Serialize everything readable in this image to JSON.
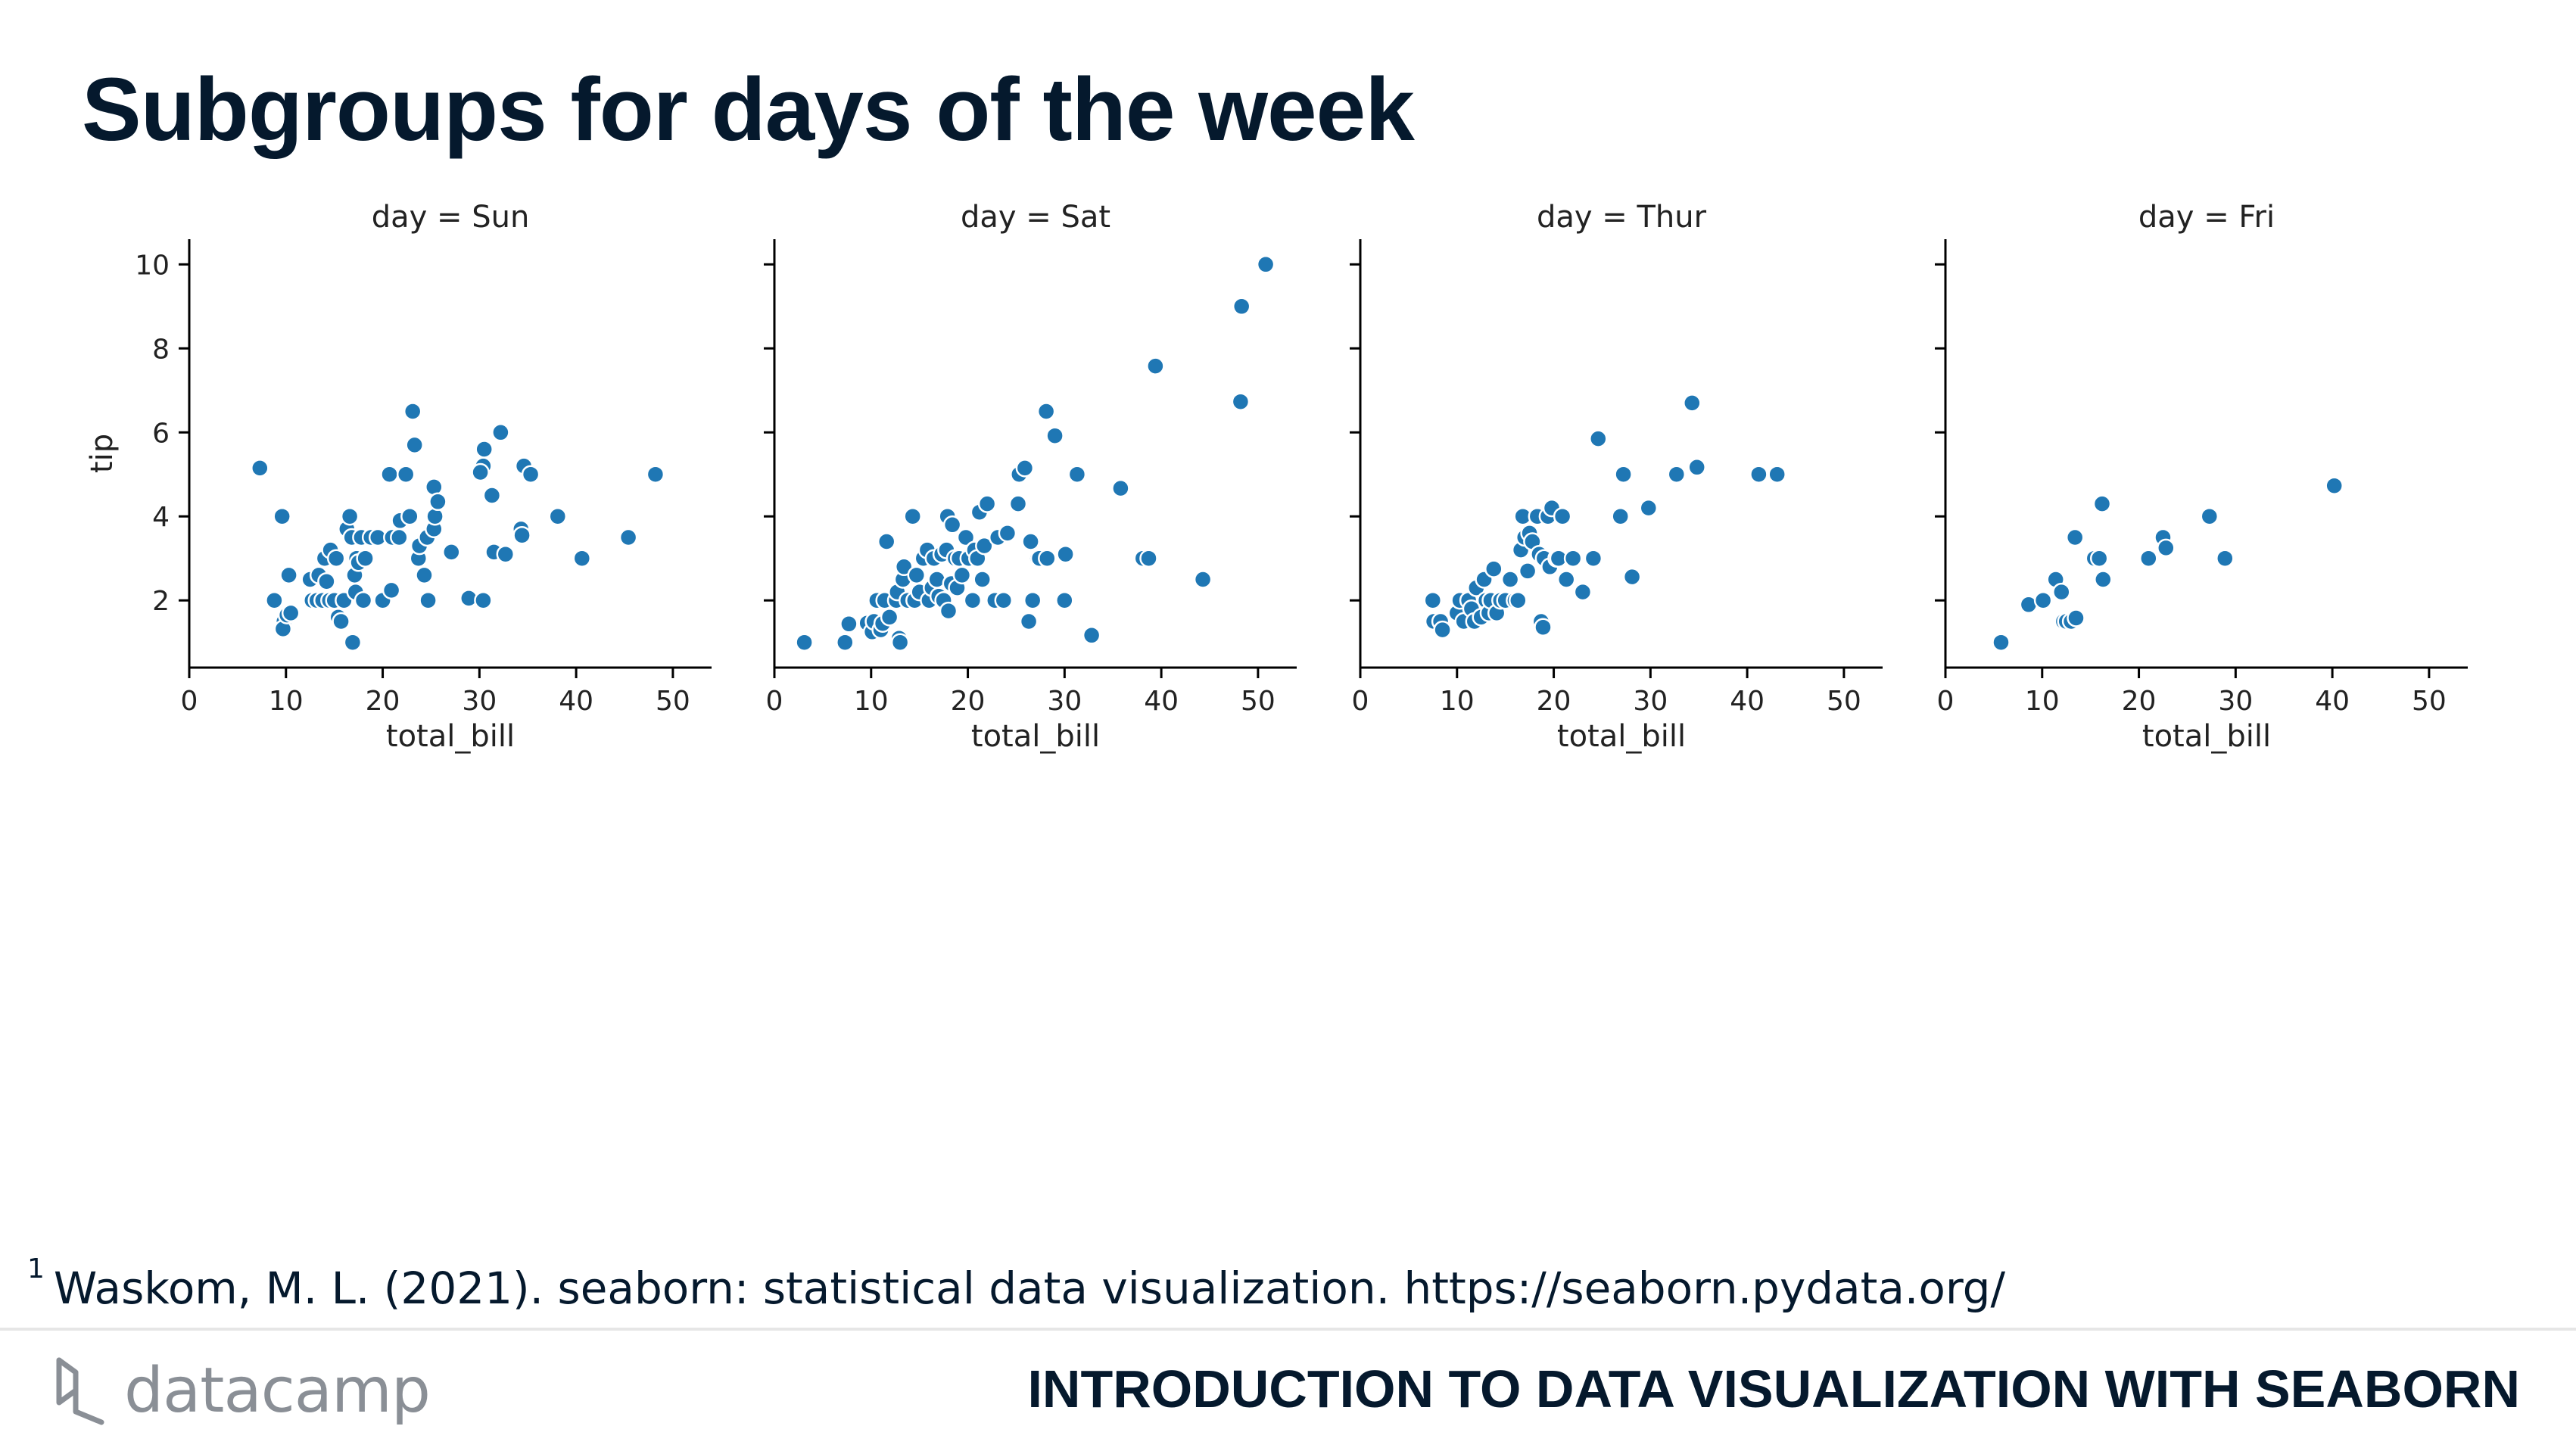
{
  "slide": {
    "title": "Subgroups for days of the week",
    "footnote_marker": "1",
    "footnote_text": "Waskom, M. L. (2021). seaborn: statistical data visualization. https://seaborn.pydata.org/",
    "brand_wordmark": "datacamp",
    "course_name": "INTRODUCTION TO DATA VISUALIZATION WITH SEABORN"
  },
  "colors": {
    "title": "#05192d",
    "point_fill": "#1f77b4",
    "point_edge": "#ffffff",
    "axis": "#000000",
    "brand": "#8a8f96"
  },
  "icons": {
    "brand_logo": "datacamp-logo-icon"
  },
  "chart_data": [
    {
      "type": "scatter",
      "title": "day = Sun",
      "xlabel": "total_bill",
      "ylabel": "tip",
      "xlim": [
        0,
        54
      ],
      "ylim": [
        0.4,
        10.6
      ],
      "xticks": [
        0,
        10,
        20,
        30,
        40,
        50
      ],
      "yticks": [
        2,
        4,
        6,
        8,
        10
      ],
      "grid": false,
      "points": [
        [
          7.3,
          5.15
        ],
        [
          8.8,
          2.0
        ],
        [
          9.6,
          4.0
        ],
        [
          9.8,
          1.5
        ],
        [
          9.7,
          1.32
        ],
        [
          10.1,
          1.65
        ],
        [
          10.3,
          2.6
        ],
        [
          10.5,
          1.7
        ],
        [
          12.5,
          2.5
        ],
        [
          12.7,
          2.0
        ],
        [
          13.2,
          2.0
        ],
        [
          13.4,
          2.6
        ],
        [
          13.8,
          2.0
        ],
        [
          14.0,
          3.0
        ],
        [
          14.2,
          2.45
        ],
        [
          14.5,
          2.0
        ],
        [
          14.6,
          3.2
        ],
        [
          15.0,
          2.0
        ],
        [
          15.2,
          3.0
        ],
        [
          15.4,
          1.6
        ],
        [
          15.7,
          1.5
        ],
        [
          16.0,
          2.0
        ],
        [
          16.3,
          3.7
        ],
        [
          16.6,
          4.0
        ],
        [
          16.8,
          3.5
        ],
        [
          16.9,
          1.0
        ],
        [
          17.1,
          2.6
        ],
        [
          17.2,
          2.2
        ],
        [
          17.3,
          3.0
        ],
        [
          17.5,
          2.9
        ],
        [
          17.8,
          3.5
        ],
        [
          18.0,
          2.0
        ],
        [
          18.2,
          3.0
        ],
        [
          18.8,
          3.5
        ],
        [
          19.5,
          3.5
        ],
        [
          20.0,
          2.0
        ],
        [
          20.7,
          5.0
        ],
        [
          20.9,
          2.24
        ],
        [
          21.0,
          3.5
        ],
        [
          21.7,
          3.5
        ],
        [
          21.8,
          3.9
        ],
        [
          22.4,
          5.0
        ],
        [
          22.8,
          4.0
        ],
        [
          23.1,
          6.5
        ],
        [
          23.3,
          5.7
        ],
        [
          23.7,
          3.0
        ],
        [
          23.8,
          3.3
        ],
        [
          24.3,
          2.6
        ],
        [
          24.6,
          3.5
        ],
        [
          24.7,
          2.0
        ],
        [
          25.3,
          4.7
        ],
        [
          25.3,
          3.7
        ],
        [
          25.4,
          4.0
        ],
        [
          25.7,
          4.35
        ],
        [
          27.1,
          3.15
        ],
        [
          28.9,
          2.05
        ],
        [
          30.4,
          5.2
        ],
        [
          30.1,
          5.05
        ],
        [
          30.5,
          5.6
        ],
        [
          30.4,
          2.0
        ],
        [
          31.3,
          4.5
        ],
        [
          31.5,
          3.15
        ],
        [
          32.2,
          6.0
        ],
        [
          32.7,
          3.1
        ],
        [
          34.3,
          3.7
        ],
        [
          34.6,
          5.2
        ],
        [
          34.4,
          3.55
        ],
        [
          35.3,
          5.0
        ],
        [
          38.1,
          4.0
        ],
        [
          40.6,
          3.0
        ],
        [
          45.4,
          3.5
        ],
        [
          48.2,
          5.0
        ]
      ]
    },
    {
      "type": "scatter",
      "title": "day = Sat",
      "xlabel": "total_bill",
      "ylabel": "",
      "xlim": [
        0,
        54
      ],
      "ylim": [
        0.4,
        10.6
      ],
      "xticks": [
        0,
        10,
        20,
        30,
        40,
        50
      ],
      "yticks": [
        2,
        4,
        6,
        8,
        10
      ],
      "grid": false,
      "points": [
        [
          3.1,
          1.0
        ],
        [
          7.3,
          1.0
        ],
        [
          7.7,
          1.44
        ],
        [
          9.6,
          1.46
        ],
        [
          10.1,
          1.25
        ],
        [
          10.3,
          1.5
        ],
        [
          10.6,
          2.0
        ],
        [
          11.0,
          1.3
        ],
        [
          11.2,
          1.45
        ],
        [
          11.4,
          2.0
        ],
        [
          11.6,
          3.4
        ],
        [
          11.9,
          1.6
        ],
        [
          12.6,
          2.0
        ],
        [
          12.7,
          2.2
        ],
        [
          12.9,
          1.1
        ],
        [
          13.0,
          1.0
        ],
        [
          13.3,
          2.5
        ],
        [
          13.4,
          2.8
        ],
        [
          13.8,
          2.0
        ],
        [
          14.3,
          4.0
        ],
        [
          14.5,
          2.0
        ],
        [
          14.7,
          2.6
        ],
        [
          15.0,
          2.2
        ],
        [
          15.4,
          3.0
        ],
        [
          15.8,
          3.2
        ],
        [
          16.0,
          2.0
        ],
        [
          16.3,
          2.3
        ],
        [
          16.5,
          3.0
        ],
        [
          16.8,
          2.5
        ],
        [
          17.0,
          2.1
        ],
        [
          17.3,
          3.1
        ],
        [
          17.5,
          2.0
        ],
        [
          17.8,
          3.2
        ],
        [
          17.9,
          4.0
        ],
        [
          18.0,
          1.75
        ],
        [
          18.3,
          2.4
        ],
        [
          18.4,
          3.8
        ],
        [
          18.7,
          3.0
        ],
        [
          18.9,
          2.3
        ],
        [
          19.1,
          3.0
        ],
        [
          19.4,
          2.6
        ],
        [
          19.8,
          3.5
        ],
        [
          20.1,
          3.0
        ],
        [
          20.5,
          2.0
        ],
        [
          20.7,
          3.2
        ],
        [
          21.0,
          3.0
        ],
        [
          21.2,
          4.1
        ],
        [
          21.5,
          2.5
        ],
        [
          21.7,
          3.3
        ],
        [
          22.0,
          4.3
        ],
        [
          22.8,
          2.0
        ],
        [
          23.1,
          3.5
        ],
        [
          23.7,
          2.0
        ],
        [
          24.1,
          3.6
        ],
        [
          25.2,
          4.3
        ],
        [
          25.3,
          5.0
        ],
        [
          25.9,
          5.15
        ],
        [
          26.3,
          1.5
        ],
        [
          26.5,
          3.4
        ],
        [
          26.7,
          2.0
        ],
        [
          27.2,
          3.0
        ],
        [
          27.4,
          3.0
        ],
        [
          28.1,
          6.5
        ],
        [
          28.2,
          3.0
        ],
        [
          29.0,
          5.92
        ],
        [
          30.0,
          2.0
        ],
        [
          30.1,
          3.1
        ],
        [
          31.3,
          5.0
        ],
        [
          32.8,
          1.17
        ],
        [
          35.8,
          4.67
        ],
        [
          38.1,
          3.0
        ],
        [
          38.7,
          3.0
        ],
        [
          39.4,
          7.58
        ],
        [
          44.3,
          2.5
        ],
        [
          48.3,
          9.0
        ],
        [
          48.2,
          6.73
        ],
        [
          50.8,
          10.0
        ]
      ]
    },
    {
      "type": "scatter",
      "title": "day = Thur",
      "xlabel": "total_bill",
      "ylabel": "",
      "xlim": [
        0,
        54
      ],
      "ylim": [
        0.4,
        10.6
      ],
      "xticks": [
        0,
        10,
        20,
        30,
        40,
        50
      ],
      "yticks": [
        2,
        4,
        6,
        8,
        10
      ],
      "grid": false,
      "points": [
        [
          7.5,
          2.0
        ],
        [
          7.6,
          1.5
        ],
        [
          8.3,
          1.5
        ],
        [
          8.5,
          1.3
        ],
        [
          10.0,
          1.7
        ],
        [
          10.3,
          2.0
        ],
        [
          10.7,
          1.5
        ],
        [
          11.2,
          2.0
        ],
        [
          11.5,
          1.8
        ],
        [
          11.8,
          1.5
        ],
        [
          12.0,
          2.3
        ],
        [
          12.5,
          1.6
        ],
        [
          12.8,
          2.5
        ],
        [
          13.0,
          2.0
        ],
        [
          13.3,
          1.7
        ],
        [
          13.5,
          2.0
        ],
        [
          13.8,
          2.75
        ],
        [
          14.1,
          1.7
        ],
        [
          14.5,
          2.0
        ],
        [
          15.0,
          2.0
        ],
        [
          15.5,
          2.5
        ],
        [
          16.0,
          2.0
        ],
        [
          16.3,
          2.0
        ],
        [
          16.6,
          3.2
        ],
        [
          16.8,
          4.0
        ],
        [
          17.0,
          3.5
        ],
        [
          17.3,
          2.7
        ],
        [
          17.5,
          3.6
        ],
        [
          17.8,
          3.4
        ],
        [
          18.3,
          4.0
        ],
        [
          18.5,
          3.1
        ],
        [
          18.7,
          1.5
        ],
        [
          18.9,
          1.36
        ],
        [
          19.0,
          3.0
        ],
        [
          19.4,
          4.0
        ],
        [
          19.6,
          2.8
        ],
        [
          19.8,
          4.2
        ],
        [
          20.3,
          3.0
        ],
        [
          20.5,
          3.0
        ],
        [
          20.9,
          4.0
        ],
        [
          21.3,
          2.5
        ],
        [
          22.0,
          3.0
        ],
        [
          23.0,
          2.2
        ],
        [
          24.1,
          3.0
        ],
        [
          24.6,
          5.85
        ],
        [
          26.9,
          4.0
        ],
        [
          27.2,
          5.0
        ],
        [
          28.1,
          2.56
        ],
        [
          29.8,
          4.2
        ],
        [
          32.7,
          5.0
        ],
        [
          34.3,
          6.7
        ],
        [
          34.8,
          5.17
        ],
        [
          41.2,
          5.0
        ],
        [
          43.1,
          5.0
        ]
      ]
    },
    {
      "type": "scatter",
      "title": "day = Fri",
      "xlabel": "total_bill",
      "ylabel": "",
      "xlim": [
        0,
        54
      ],
      "ylim": [
        0.4,
        10.6
      ],
      "xticks": [
        0,
        10,
        20,
        30,
        40,
        50
      ],
      "yticks": [
        2,
        4,
        6,
        8,
        10
      ],
      "grid": false,
      "points": [
        [
          5.75,
          1.0
        ],
        [
          8.6,
          1.9
        ],
        [
          10.1,
          2.0
        ],
        [
          11.4,
          2.5
        ],
        [
          12.0,
          2.2
        ],
        [
          12.2,
          1.5
        ],
        [
          12.5,
          1.5
        ],
        [
          13.0,
          1.5
        ],
        [
          13.4,
          3.5
        ],
        [
          13.5,
          1.58
        ],
        [
          15.4,
          3.0
        ],
        [
          15.9,
          3.0
        ],
        [
          16.3,
          2.5
        ],
        [
          16.2,
          4.3
        ],
        [
          21.0,
          3.0
        ],
        [
          22.5,
          3.5
        ],
        [
          22.8,
          3.25
        ],
        [
          27.3,
          4.0
        ],
        [
          28.9,
          3.0
        ],
        [
          40.2,
          4.73
        ]
      ]
    }
  ]
}
